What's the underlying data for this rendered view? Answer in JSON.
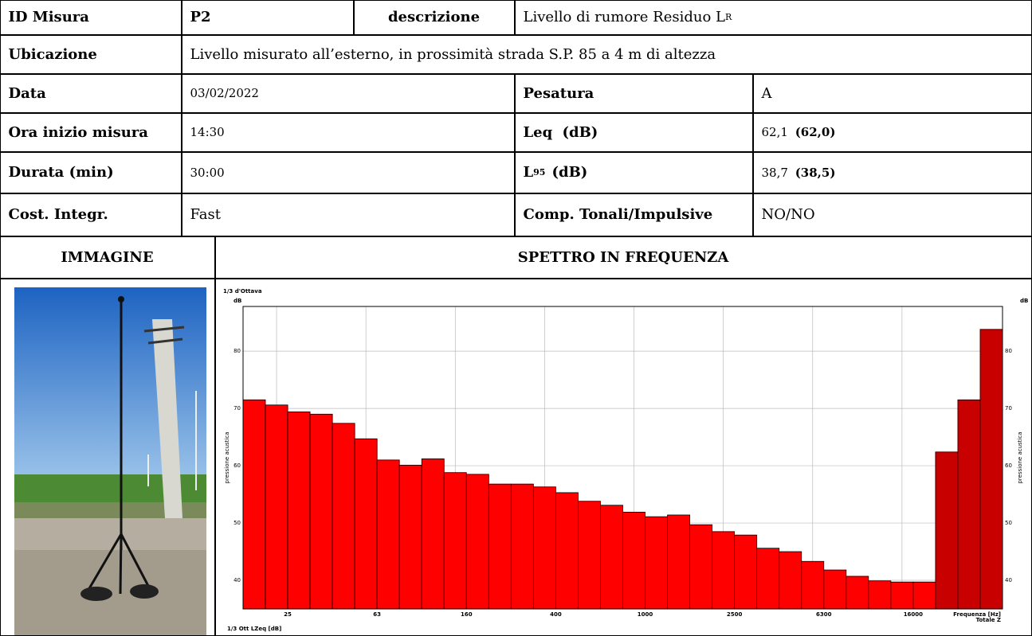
{
  "table": {
    "rows": [
      [
        "ID Misura",
        "P2",
        "descrizione",
        [
          "Livello di rumore Residuo L",
          "R"
        ]
      ],
      [
        "Ubicazione",
        "Livello misurato all’esterno, in prossimità strada S.P. 85 a 4 m di altezza"
      ],
      [
        "Data",
        "03/02/2022",
        "Pesatura",
        "A"
      ],
      [
        "Ora inizio misura",
        "14:30",
        "Leq (dB)",
        [
          "62,1",
          "(62,0)"
        ]
      ],
      [
        "Durata (min)",
        "30:00",
        [
          "L",
          "95",
          "(dB)"
        ],
        [
          "38,7",
          "(38,5)"
        ]
      ],
      [
        "Cost. Integr.",
        "Fast",
        "Comp. Tonali/Impulsive",
        "NO/NO"
      ],
      [
        "IMMAGINE",
        "SPETTRO IN FREQUENZA"
      ]
    ]
  },
  "chart_data": {
    "type": "bar",
    "title": "1/3 d'Ottava",
    "y_unit": "dB",
    "ylabel": "pressione acustica",
    "footer": "1/3 Ott LZeq [dB]",
    "xlabel": "Frequenza [Hz]",
    "total_label": "Totale Z",
    "categories": [
      null,
      "25",
      null,
      null,
      null,
      "63",
      null,
      null,
      null,
      "160",
      null,
      null,
      null,
      "400",
      null,
      null,
      null,
      "1000",
      null,
      null,
      null,
      "2500",
      null,
      null,
      null,
      "6300",
      null,
      null,
      null,
      "16000",
      null
    ],
    "values": [
      71.5,
      70.6,
      69.4,
      69.0,
      67.4,
      64.7,
      61.0,
      60.1,
      61.2,
      58.8,
      58.5,
      56.8,
      56.8,
      56.3,
      55.3,
      53.8,
      53.1,
      51.9,
      51.1,
      51.4,
      49.7,
      48.5,
      47.9,
      45.6,
      45.0,
      43.3,
      41.8,
      40.7,
      39.9,
      39.7,
      39.7
    ],
    "totals": [
      62.4,
      71.5,
      83.8
    ],
    "color": "#ff0000",
    "total_color": "#c80000",
    "ylim": [
      35,
      87.8
    ],
    "yticks": [
      40,
      50,
      60,
      70,
      80
    ],
    "grid": true
  }
}
